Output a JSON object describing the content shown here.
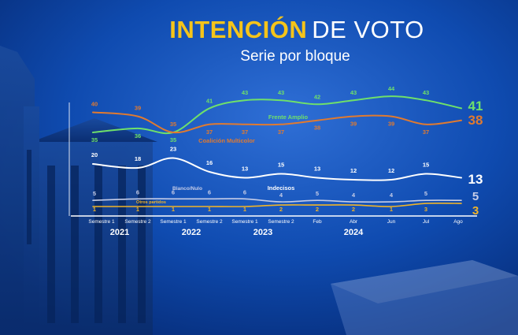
{
  "header": {
    "title_accent": "INTENCIÓN",
    "title_rest": "DE VOTO",
    "subtitle": "Serie por bloque"
  },
  "colors": {
    "accent_yellow": "#f5c41a",
    "frente_amplio": "#6fe06a",
    "coalicion": "#e07a30",
    "indecisos": "#ffffff",
    "blanco_nulo": "#c6cde8",
    "otros": "#f0b429"
  },
  "chart_data": {
    "type": "line",
    "title": "INTENCIÓN DE VOTO",
    "subtitle": "Serie por bloque",
    "categories": [
      "Semestre 1",
      "Semestre 2",
      "Semestre 1",
      "Semestre 2",
      "Semestre 1",
      "Semestre 2",
      "Feb",
      "Abr",
      "Jun",
      "Jul",
      "Ago"
    ],
    "years": [
      {
        "label": "2021",
        "from": 0,
        "to": 1
      },
      {
        "label": "2022",
        "from": 2,
        "to": 3
      },
      {
        "label": "2023",
        "from": 4,
        "to": 5
      },
      {
        "label": "2024",
        "from": 6,
        "to": 10
      }
    ],
    "xlabel": "",
    "ylabel": "",
    "ylim": [
      0,
      45
    ],
    "series": [
      {
        "key": "fa",
        "name": "Frente Amplio",
        "values": [
          35,
          36,
          35,
          41,
          43,
          43,
          42,
          43,
          44,
          43,
          41
        ],
        "final_label": "41"
      },
      {
        "key": "cm",
        "name": "Coalición Multicolor",
        "values": [
          40,
          39,
          35,
          37,
          37,
          37,
          38,
          39,
          39,
          37,
          38
        ],
        "final_label": "38"
      },
      {
        "key": "ind",
        "name": "Indecisos",
        "values": [
          20,
          18,
          23,
          16,
          13,
          15,
          13,
          12,
          12,
          15,
          13
        ],
        "final_label": "13"
      },
      {
        "key": "bn",
        "name": "Blanco/Nulo",
        "values": [
          5,
          6,
          6,
          6,
          6,
          4,
          5,
          4,
          4,
          5,
          5
        ],
        "final_label": "5"
      },
      {
        "key": "ot",
        "name": "Otros partidos",
        "values": [
          1,
          1,
          1,
          1,
          1,
          2,
          2,
          2,
          1,
          3,
          3
        ],
        "final_label": "3"
      }
    ]
  }
}
